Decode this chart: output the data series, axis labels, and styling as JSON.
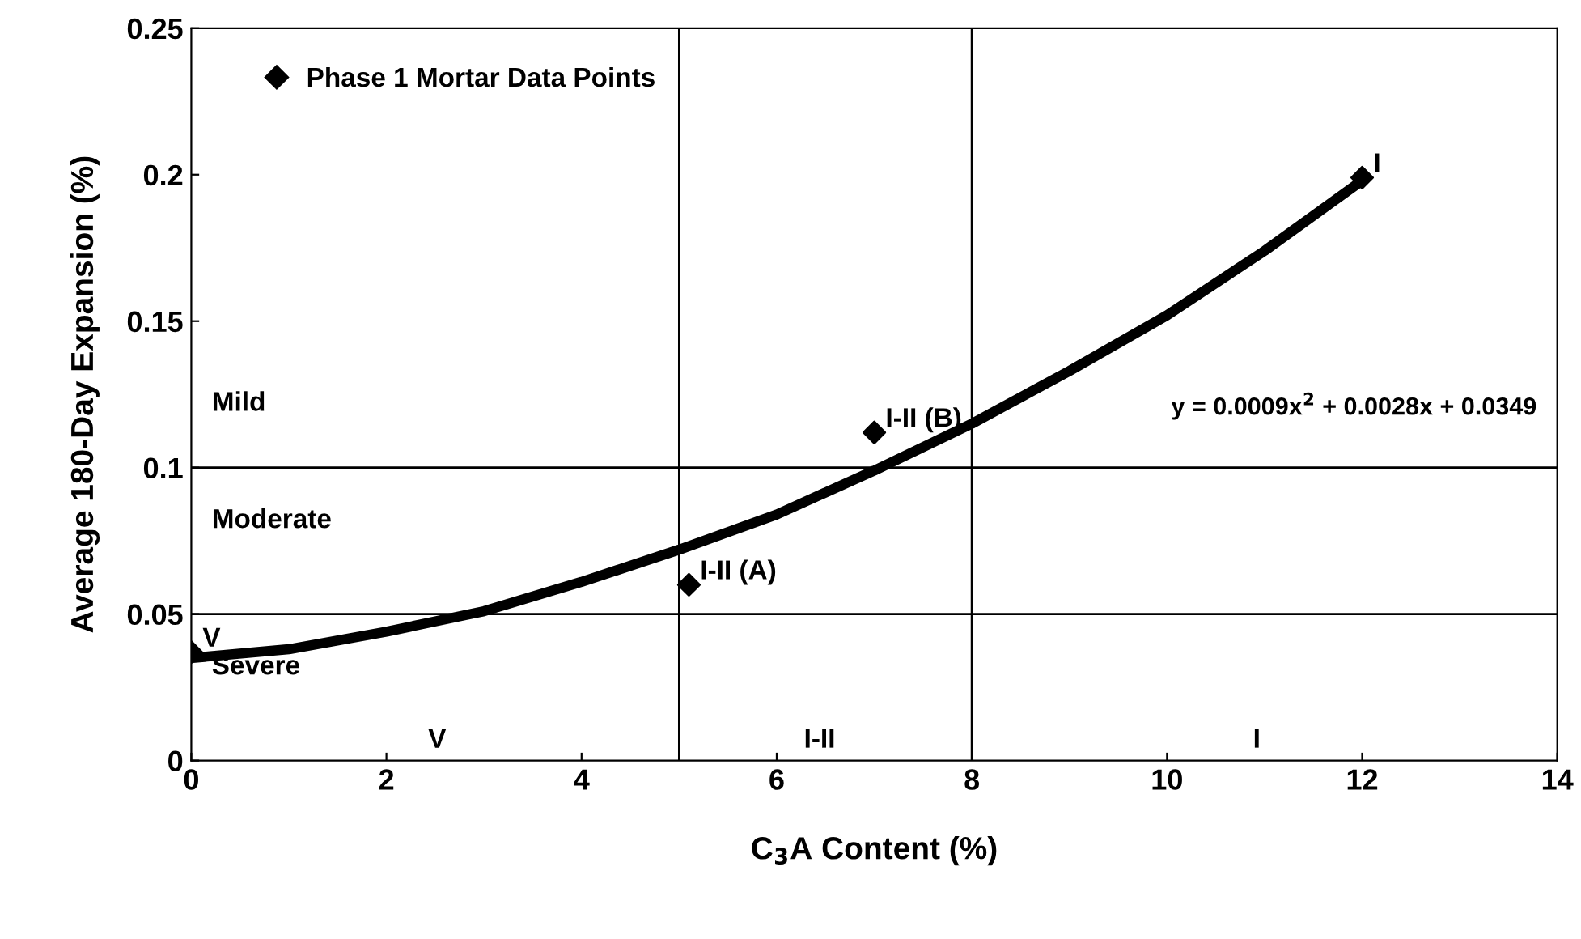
{
  "chart_data": {
    "type": "scatter",
    "xlabel": "C$_{3}$A Content (%)",
    "ylabel": "Average 180-Day Expansion (%)",
    "xlim": [
      0,
      14
    ],
    "xticks": [
      0,
      2,
      4,
      6,
      8,
      10,
      12,
      14
    ],
    "ylim": [
      0,
      0.25
    ],
    "yticks": [
      0,
      0.05,
      0.1,
      0.15,
      0.2,
      0.25
    ],
    "grid": false,
    "legend": "top left",
    "series": [
      {
        "name": "Phase 1 Mortar Data Points",
        "marker": "diamond",
        "color": "#000000",
        "x": [
          0,
          5.1,
          7,
          12
        ],
        "values": [
          0.037,
          0.06,
          0.112,
          0.199
        ]
      },
      {
        "type": "line",
        "color": "#000000",
        "line_style": "solid",
        "marker": "none",
        "x": [
          0,
          1,
          2,
          3,
          4,
          5,
          6,
          7,
          8,
          9,
          10,
          11,
          12
        ],
        "values": [
          0.035,
          0.038,
          0.044,
          0.051,
          0.061,
          0.072,
          0.084,
          0.099,
          0.115,
          0.133,
          0.152,
          0.174,
          0.198
        ]
      }
    ],
    "ref_lines": [
      {
        "axis": "y",
        "value": 0.1,
        "color": "#000000"
      },
      {
        "axis": "y",
        "value": 0.05,
        "color": "#000000"
      },
      {
        "axis": "x",
        "value": 5,
        "color": "#000000"
      },
      {
        "axis": "x",
        "value": 8,
        "color": "#000000"
      }
    ],
    "annotations": [
      {
        "text": "V",
        "x": 0,
        "y": 0.037
      },
      {
        "text": "I-II (A)",
        "x": 5.1,
        "y": 0.06
      },
      {
        "text": "I-II (B)",
        "x": 7,
        "y": 0.112
      },
      {
        "text": "I",
        "x": 12,
        "y": 0.199
      },
      "y = 0.0009x$^{2}$ + 0.0028x + 0.0349",
      "Mild",
      "Moderate",
      "Severe",
      "V",
      "I-II",
      "I"
    ]
  }
}
